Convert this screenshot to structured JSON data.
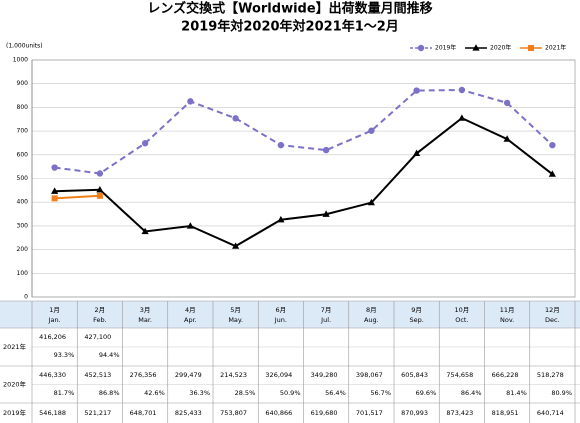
{
  "chart_data": {
    "type": "line",
    "title": "レンズ交換式【Worldwide】出荷数量月間推移",
    "subtitle": "2019年対2020年対2021年1～2月",
    "y_label": "(1,000units)",
    "ylim": [
      0,
      1000
    ],
    "yticks": [
      0,
      100,
      200,
      300,
      400,
      500,
      600,
      700,
      800,
      900,
      1000
    ],
    "grid": true,
    "legend": "top-right",
    "series": [
      {
        "name": "2019年",
        "color": "#7b72c8",
        "style": "dashed",
        "marker": "circle",
        "values": [
          546.188,
          521.217,
          648.701,
          825.433,
          753.807,
          640.866,
          619.68,
          701.517,
          870.993,
          873.423,
          818.951,
          640.714
        ]
      },
      {
        "name": "2020年",
        "color": "#000000",
        "style": "solid",
        "marker": "triangle",
        "values": [
          446.33,
          452.513,
          276.356,
          299.479,
          214.523,
          326.094,
          349.28,
          398.067,
          605.843,
          754.658,
          666.228,
          518.278
        ]
      },
      {
        "name": "2021年",
        "color": "#f07f1a",
        "style": "solid",
        "marker": "square",
        "values": [
          416.206,
          427.1
        ]
      }
    ]
  },
  "table": {
    "header": [
      {
        "ja": "1月",
        "en": "Jan."
      },
      {
        "ja": "2月",
        "en": "Feb."
      },
      {
        "ja": "3月",
        "en": "Mar."
      },
      {
        "ja": "4月",
        "en": "Apr."
      },
      {
        "ja": "5月",
        "en": "May."
      },
      {
        "ja": "6月",
        "en": "Jun."
      },
      {
        "ja": "7月",
        "en": "Jul."
      },
      {
        "ja": "8月",
        "en": "Aug."
      },
      {
        "ja": "9月",
        "en": "Sep."
      },
      {
        "ja": "10月",
        "en": "Oct."
      },
      {
        "ja": "11月",
        "en": "Nov."
      },
      {
        "ja": "12月",
        "en": "Dec."
      }
    ],
    "rows": [
      {
        "label": "2021年",
        "values": [
          "416,206",
          "427,100"
        ],
        "ratios": [
          "93.3%",
          "94.4%"
        ]
      },
      {
        "label": "2020年",
        "values": [
          "446,330",
          "452,513",
          "276,356",
          "299,479",
          "214,523",
          "326,094",
          "349,280",
          "398,067",
          "605,843",
          "754,658",
          "666,228",
          "518,278"
        ],
        "ratios": [
          "81.7%",
          "86.8%",
          "42.6%",
          "36.3%",
          "28.5%",
          "50.9%",
          "56.4%",
          "56.7%",
          "69.6%",
          "86.4%",
          "81.4%",
          "80.9%"
        ]
      },
      {
        "label": "2019年",
        "values": [
          "546,188",
          "521,217",
          "648,701",
          "825,433",
          "753,807",
          "640,866",
          "619,680",
          "701,517",
          "870,993",
          "873,423",
          "818,951",
          "640,714"
        ]
      }
    ]
  }
}
